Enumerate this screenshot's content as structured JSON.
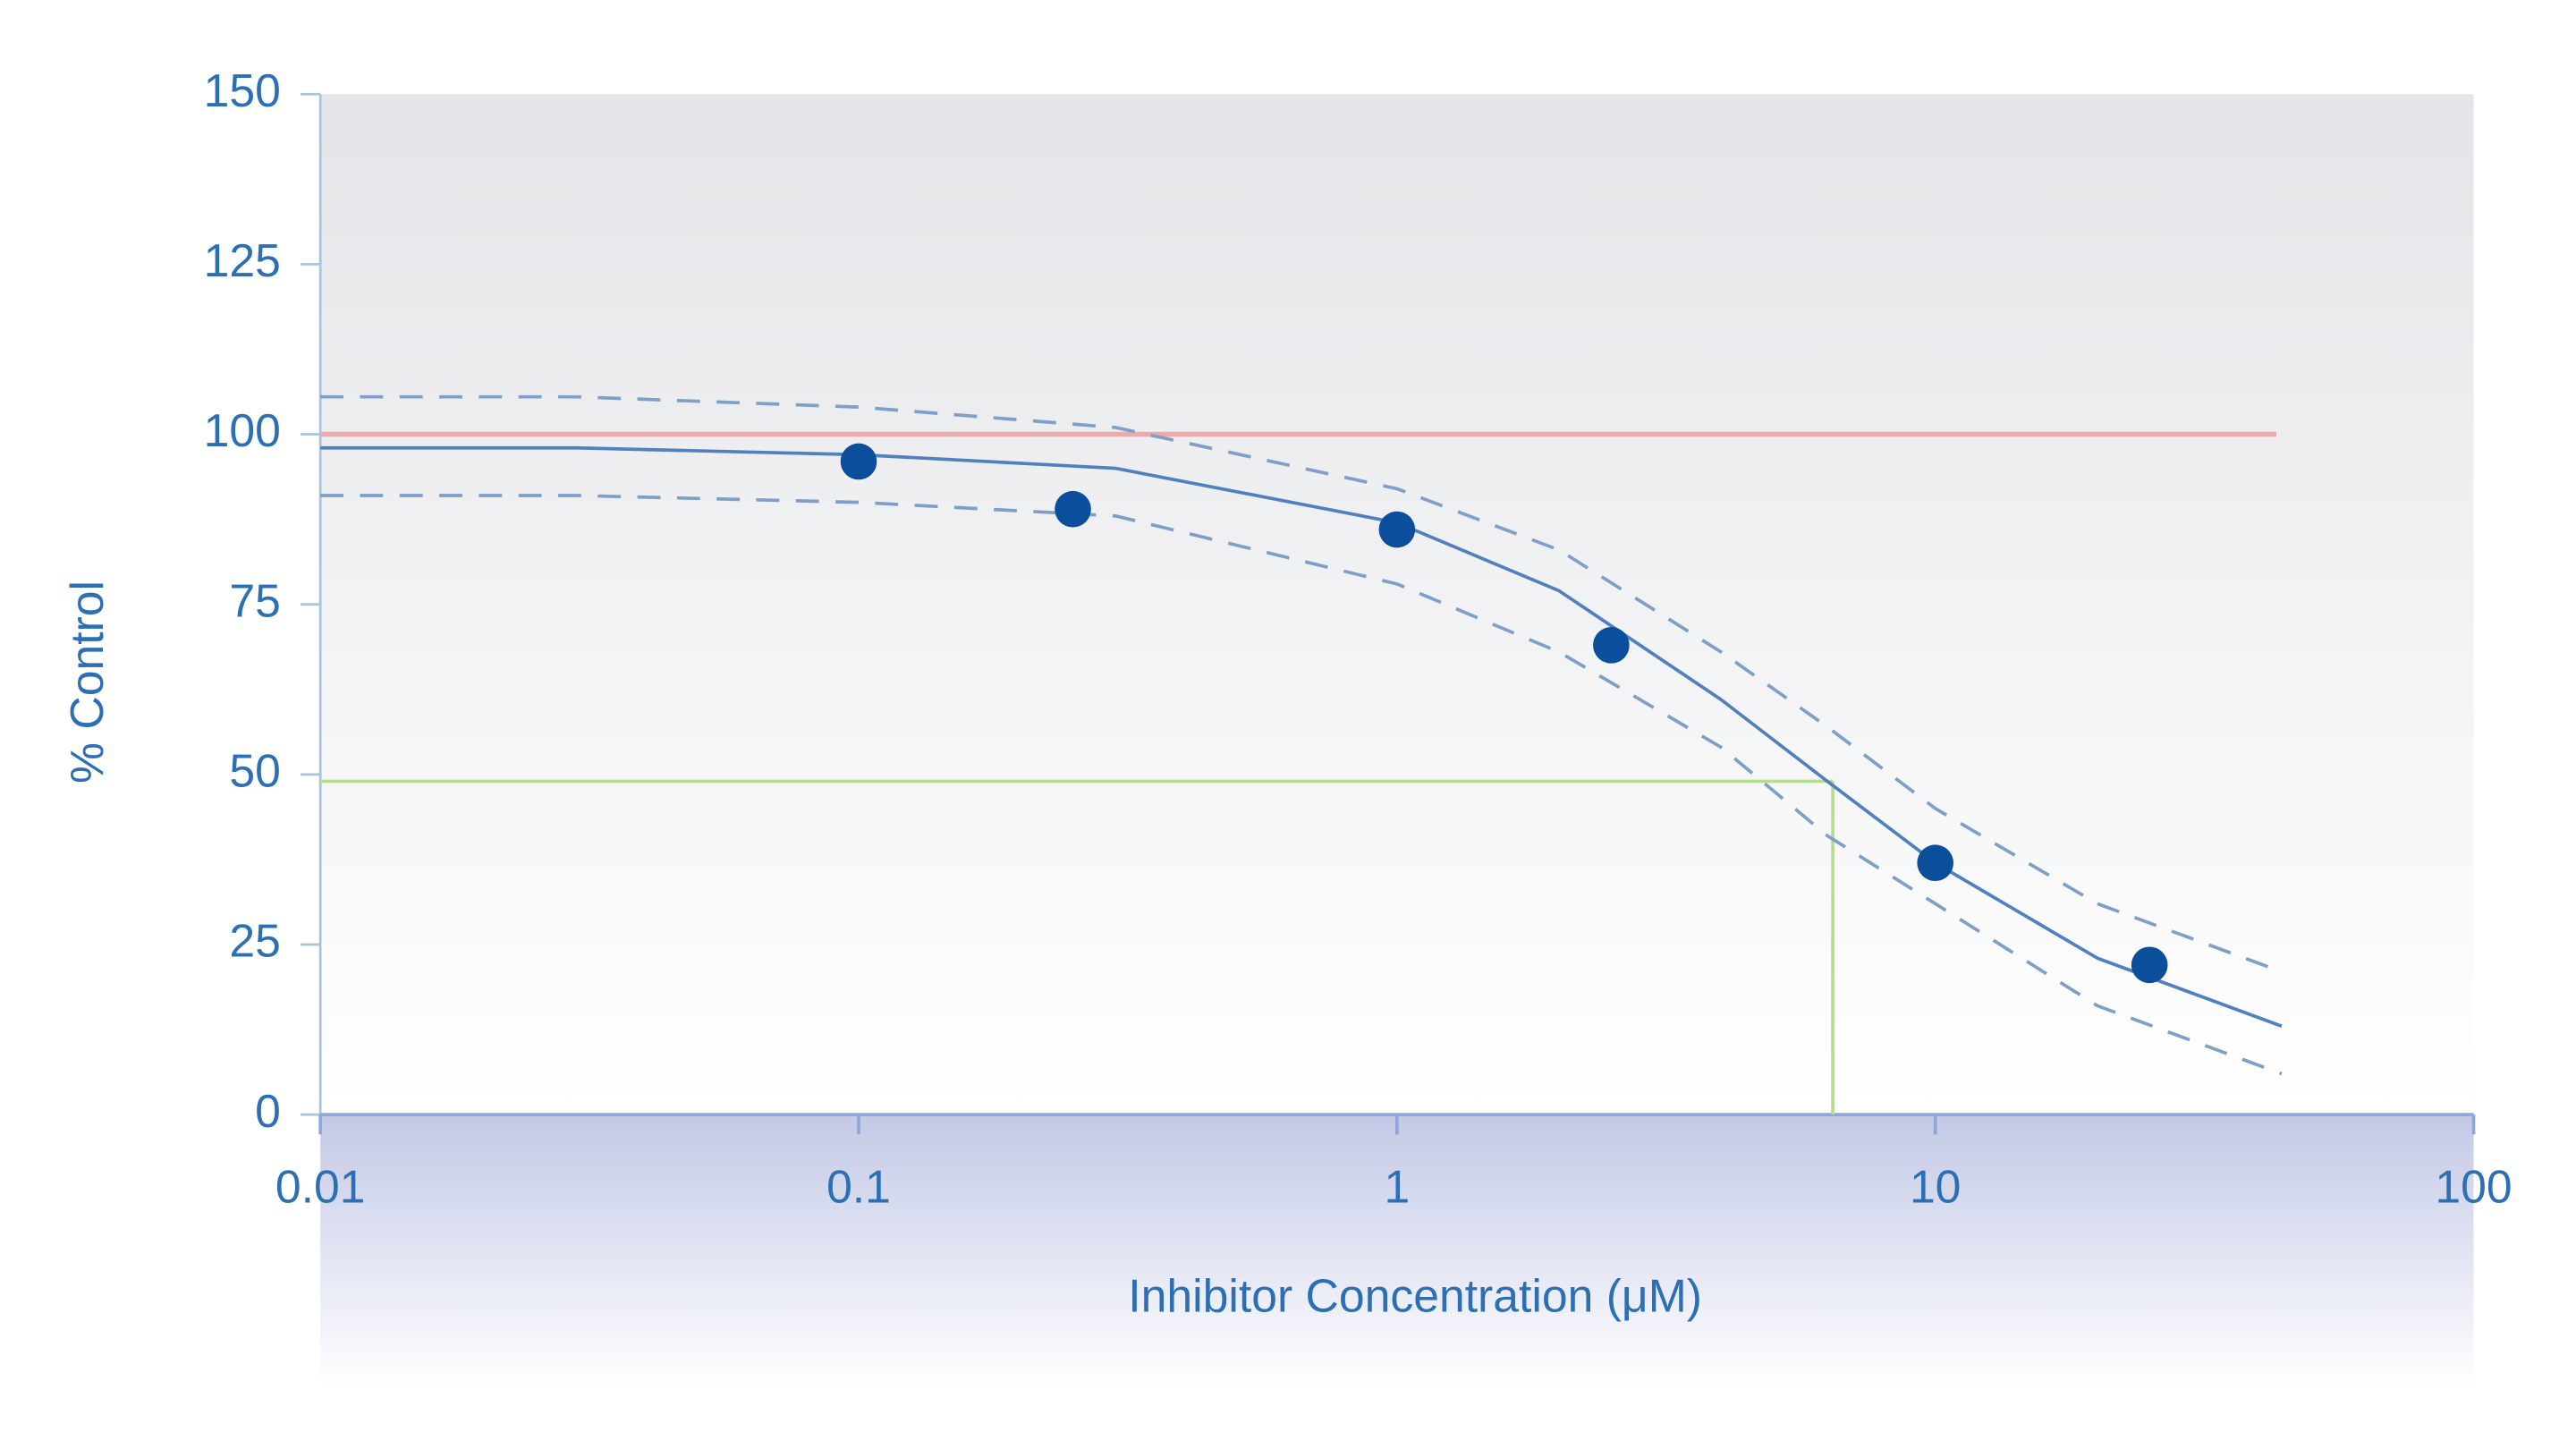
{
  "chart_data": {
    "type": "line",
    "xlabel": "Inhibitor Concentration (μM)",
    "ylabel": "% Control",
    "xscale": "log",
    "xlim": [
      0.01,
      100
    ],
    "ylim": [
      0,
      150
    ],
    "xticks": [
      0.01,
      0.1,
      1,
      10,
      100
    ],
    "yticks": [
      0,
      25,
      50,
      75,
      100,
      125,
      150
    ],
    "points": {
      "x": [
        0.1,
        0.25,
        1,
        2.5,
        10,
        25
      ],
      "values": [
        96,
        89,
        86,
        69,
        37,
        22
      ],
      "color": "#0b4f9c"
    },
    "series": [
      {
        "x": [
          0.01,
          0.03,
          0.1,
          0.3,
          1,
          2,
          4,
          6.3,
          10,
          20,
          44
        ],
        "values": [
          98,
          98,
          97,
          95,
          87,
          77,
          61,
          49,
          37,
          23,
          13
        ],
        "color": "#5080c0",
        "dash": false
      },
      {
        "x": [
          0.01,
          0.03,
          0.1,
          0.3,
          1,
          2,
          4,
          6.3,
          10,
          20,
          44
        ],
        "values": [
          105.5,
          105.5,
          104,
          101,
          92,
          83,
          68,
          57,
          45,
          31,
          21
        ],
        "color": "#7f9fc8",
        "dash": true
      },
      {
        "x": [
          0.01,
          0.03,
          0.1,
          0.3,
          1,
          2,
          4,
          6.3,
          10,
          20,
          44
        ],
        "values": [
          91,
          91,
          90,
          88,
          78,
          68,
          54,
          41,
          31,
          16,
          6
        ],
        "color": "#7f9fc8",
        "dash": true
      }
    ],
    "reference_line": {
      "y": 100,
      "xlim": [
        0.01,
        43
      ],
      "color": "#f0a8a8"
    },
    "ic50": {
      "x": 6.45,
      "y": 49,
      "color": "#b8dc8e"
    }
  }
}
